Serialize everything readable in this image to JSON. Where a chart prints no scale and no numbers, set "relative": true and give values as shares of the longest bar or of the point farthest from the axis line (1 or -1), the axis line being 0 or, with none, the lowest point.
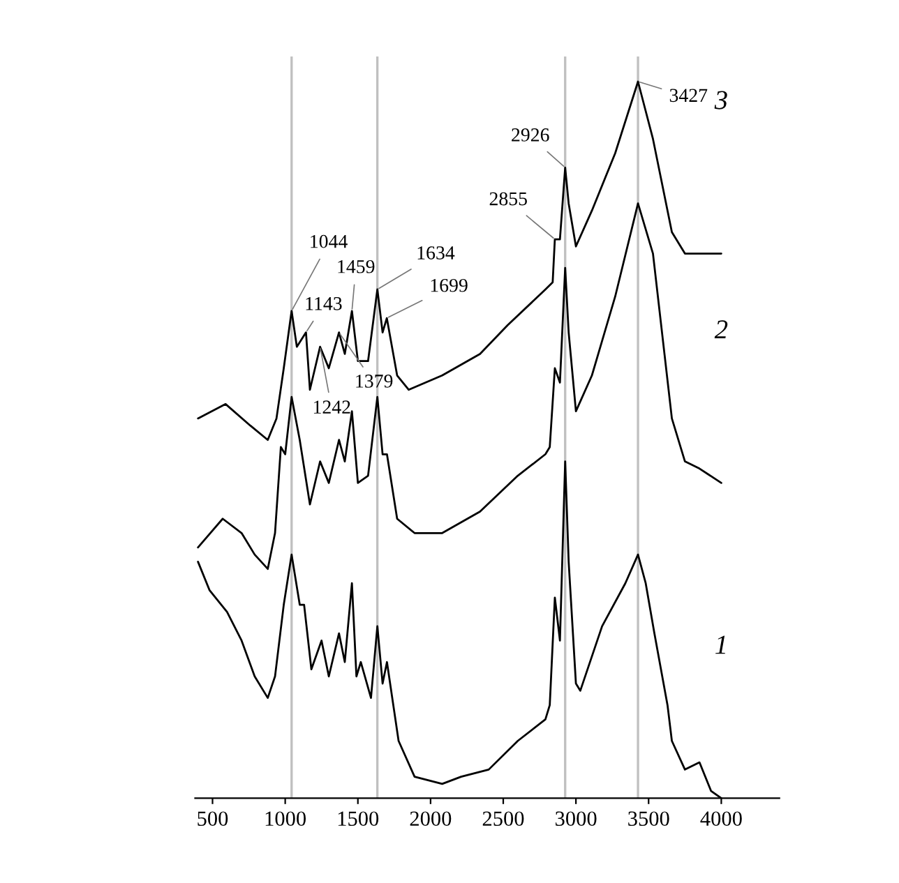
{
  "chart_data": {
    "type": "line",
    "relative": true,
    "tick_labels": "x",
    "grid": false,
    "legend": false,
    "marker": "none",
    "line_style": "solid",
    "xlim": [
      380,
      4400
    ],
    "xticks": [
      500,
      1000,
      1500,
      2000,
      2500,
      3000,
      3500,
      4000
    ],
    "ref_lines": [
      {
        "axis": "x",
        "value": 1044,
        "color": "#c0c0c0"
      },
      {
        "axis": "x",
        "value": 1634,
        "color": "#c0c0c0"
      },
      {
        "axis": "x",
        "value": 2926,
        "color": "#c0c0c0"
      },
      {
        "axis": "x",
        "value": 3427,
        "color": "#c0c0c0"
      }
    ],
    "annotations": [
      {
        "text": "1044",
        "x": 1044,
        "y": 0.68
      },
      {
        "text": "1143",
        "x": 1143,
        "y": 0.65
      },
      {
        "text": "1242",
        "x": 1240,
        "y": 0.63
      },
      {
        "text": "1379",
        "x": 1370,
        "y": 0.65
      },
      {
        "text": "1459",
        "x": 1459,
        "y": 0.68
      },
      {
        "text": "1634",
        "x": 1634,
        "y": 0.71
      },
      {
        "text": "1699",
        "x": 1699,
        "y": 0.67
      },
      {
        "text": "2855",
        "x": 2855,
        "y": 0.78
      },
      {
        "text": "2926",
        "x": 2926,
        "y": 0.88
      },
      {
        "text": "3427",
        "x": 3427,
        "y": 1.0
      }
    ],
    "series": [
      {
        "name": "3",
        "color": "#000000",
        "x": [
          400,
          590,
          760,
          880,
          940,
          990,
          1044,
          1080,
          1143,
          1170,
          1240,
          1300,
          1370,
          1410,
          1459,
          1500,
          1570,
          1634,
          1670,
          1699,
          1770,
          1850,
          2080,
          2340,
          2530,
          2790,
          2840,
          2855,
          2890,
          2926,
          2950,
          3000,
          3110,
          3270,
          3427,
          3530,
          3660,
          3750,
          4000
        ],
        "values": [
          0.53,
          0.55,
          0.52,
          0.5,
          0.53,
          0.6,
          0.68,
          0.63,
          0.65,
          0.57,
          0.63,
          0.6,
          0.65,
          0.62,
          0.68,
          0.61,
          0.61,
          0.71,
          0.65,
          0.67,
          0.59,
          0.57,
          0.59,
          0.62,
          0.66,
          0.71,
          0.72,
          0.78,
          0.78,
          0.88,
          0.83,
          0.77,
          0.82,
          0.9,
          1.0,
          0.92,
          0.79,
          0.76,
          0.76
        ]
      },
      {
        "name": "2",
        "color": "#000000",
        "x": [
          400,
          570,
          700,
          790,
          880,
          930,
          970,
          1000,
          1044,
          1100,
          1170,
          1240,
          1300,
          1370,
          1410,
          1459,
          1500,
          1570,
          1634,
          1670,
          1700,
          1770,
          1890,
          2080,
          2340,
          2600,
          2790,
          2820,
          2855,
          2890,
          2926,
          2950,
          3000,
          3110,
          3270,
          3427,
          3530,
          3660,
          3750,
          3850,
          4000
        ],
        "values": [
          0.35,
          0.39,
          0.37,
          0.34,
          0.32,
          0.37,
          0.49,
          0.48,
          0.56,
          0.5,
          0.41,
          0.47,
          0.44,
          0.5,
          0.47,
          0.54,
          0.44,
          0.45,
          0.56,
          0.48,
          0.48,
          0.39,
          0.37,
          0.37,
          0.4,
          0.45,
          0.48,
          0.49,
          0.6,
          0.58,
          0.74,
          0.65,
          0.54,
          0.59,
          0.7,
          0.83,
          0.76,
          0.53,
          0.47,
          0.46,
          0.44
        ]
      },
      {
        "name": "1",
        "color": "#000000",
        "x": [
          400,
          480,
          600,
          700,
          790,
          880,
          930,
          990,
          1044,
          1100,
          1130,
          1180,
          1250,
          1300,
          1370,
          1410,
          1459,
          1490,
          1520,
          1590,
          1634,
          1670,
          1700,
          1780,
          1890,
          2080,
          2210,
          2400,
          2600,
          2790,
          2820,
          2855,
          2890,
          2926,
          2950,
          3000,
          3030,
          3180,
          3340,
          3427,
          3480,
          3540,
          3630,
          3660,
          3750,
          3850,
          3930,
          4000
        ],
        "values": [
          0.33,
          0.29,
          0.26,
          0.22,
          0.17,
          0.14,
          0.17,
          0.27,
          0.34,
          0.27,
          0.27,
          0.18,
          0.22,
          0.17,
          0.23,
          0.19,
          0.3,
          0.17,
          0.19,
          0.14,
          0.24,
          0.16,
          0.19,
          0.08,
          0.03,
          0.02,
          0.03,
          0.04,
          0.08,
          0.11,
          0.13,
          0.28,
          0.22,
          0.47,
          0.33,
          0.16,
          0.15,
          0.24,
          0.3,
          0.34,
          0.3,
          0.23,
          0.13,
          0.08,
          0.04,
          0.05,
          0.01,
          0.0
        ]
      }
    ]
  }
}
